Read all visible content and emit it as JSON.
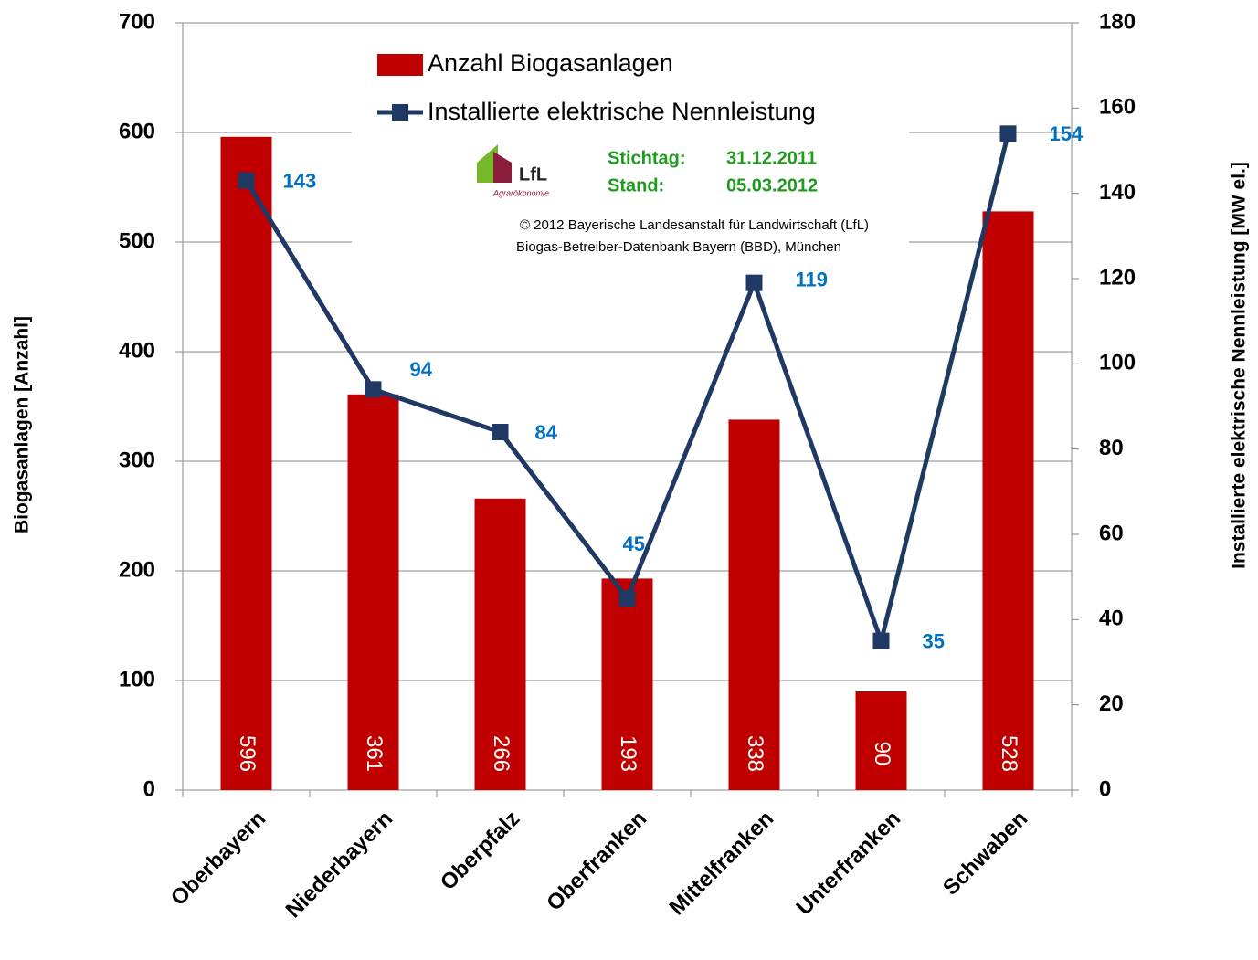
{
  "chart_data": {
    "type": "bar_line",
    "categories": [
      "Oberbayern",
      "Niederbayern",
      "Oberpfalz",
      "Oberfranken",
      "Mittelfranken",
      "Unterfranken",
      "Schwaben"
    ],
    "series": [
      {
        "name": "Anzahl Biogasanlagen",
        "color": "#c00000",
        "type": "bar",
        "values": [
          596,
          361,
          266,
          193,
          338,
          90,
          528
        ]
      },
      {
        "name": "Installierte elektrische Nennleistung",
        "color": "#1f3864",
        "label_color": "#0070c0",
        "type": "line",
        "axis": "y2",
        "values": [
          143,
          94,
          84,
          45,
          119,
          35,
          154
        ]
      }
    ],
    "ylabel": "Biogasanlagen [Anzahl]",
    "y2label": "Installierte elektrische  Nennleistung [MW el.]",
    "ylim": [
      0,
      700
    ],
    "yticks": [
      0,
      100,
      200,
      300,
      400,
      500,
      600,
      700
    ],
    "y2lim": [
      0,
      180
    ],
    "y2ticks": [
      0,
      20,
      40,
      60,
      80,
      100,
      120,
      140,
      160,
      180
    ],
    "grid": true,
    "logo": {
      "name": "LfL",
      "subtitle": "Agrarökonomie"
    },
    "annotations": {
      "stichtag_label": "Stichtag:",
      "stichtag": "31.12.2011",
      "stand_label": "Stand:",
      "stand": "05.03.2012",
      "copyright": "© 2012 Bayerische Landesanstalt für Landwirtschaft (LfL)",
      "source": "Biogas-Betreiber-Datenbank Bayern (BBD), München"
    }
  }
}
